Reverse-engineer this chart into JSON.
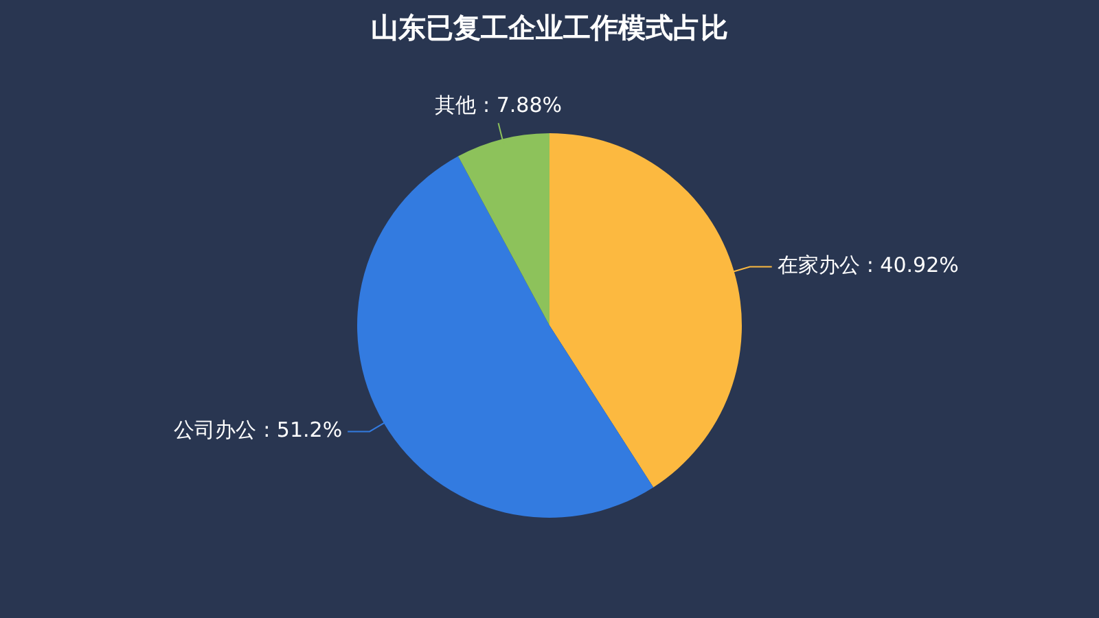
{
  "chart_data": {
    "type": "pie",
    "title": "山东已复工企业工作模式占比",
    "categories": [
      "在家办公",
      "公司办公",
      "其他"
    ],
    "values": [
      40.92,
      51.2,
      7.88
    ],
    "value_labels": [
      ": 40.92%",
      ": 51.2%",
      ": 7.88%"
    ],
    "colors": [
      "#fcb940",
      "#337be0",
      "#8dc25b"
    ],
    "legend": false
  }
}
